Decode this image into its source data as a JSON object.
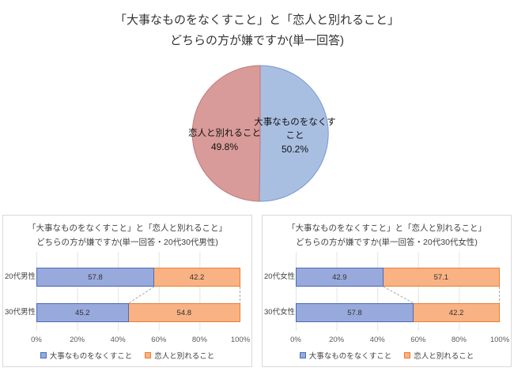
{
  "header": {
    "title_line1": "「大事なものをなくすこと」と「恋人と別れること」",
    "title_line2": "どちらの方が嫌ですか(単一回答)"
  },
  "colors": {
    "pie": {
      "blue": {
        "fill": "#a9bfe2",
        "stroke": "#7599d2"
      },
      "pink": {
        "fill": "#d89b99",
        "stroke": "#c27a78"
      }
    },
    "bar_blue_fill": "#98a9dc",
    "bar_blue_stroke": "#4b69b8",
    "bar_orange_fill": "#f8b284",
    "bar_orange_stroke": "#ea7f32",
    "gridline": "#e4e4e4",
    "connector": "#a6a6a6",
    "panel_border": "#d9d9d9"
  },
  "chart_data": [
    {
      "type": "pie",
      "title": "「大事なものをなくすこと」と「恋人と別れること」 どちらの方が嫌ですか(単一回答)",
      "direction": "clockwise",
      "start_angle_deg": 0,
      "slices": [
        {
          "label": "大事なものをなくすこと",
          "value": 50.2,
          "value_label": "50.2%",
          "color_key": "blue"
        },
        {
          "label": "恋人と別れること",
          "value": 49.8,
          "value_label": "49.8%",
          "color_key": "pink"
        }
      ]
    },
    {
      "type": "bar",
      "orientation": "horizontal-stacked",
      "title_line1": "「大事なものをなくすこと」と「恋人と別れること」",
      "title_line2": "どちらの方が嫌ですか(単一回答・20代30代男性)",
      "categories": [
        "20代男性",
        "30代男性"
      ],
      "series": [
        {
          "name": "大事なものをなくすこと",
          "values": [
            57.8,
            45.2
          ]
        },
        {
          "name": "恋人と別れること",
          "values": [
            42.2,
            54.8
          ]
        }
      ],
      "xlim": [
        0,
        100
      ],
      "ticks": [
        "0%",
        "20%",
        "40%",
        "60%",
        "80%",
        "100%"
      ],
      "legend": [
        "大事なものをなくすこと",
        "恋人と別れること"
      ],
      "grid": "vertical"
    },
    {
      "type": "bar",
      "orientation": "horizontal-stacked",
      "title_line1": "「大事なものをなくすこと」と「恋人と別れること」",
      "title_line2": "どちらの方が嫌ですか(単一回答・20代30代女性)",
      "categories": [
        "20代女性",
        "30代女性"
      ],
      "series": [
        {
          "name": "大事なものをなくすこと",
          "values": [
            42.9,
            57.8
          ]
        },
        {
          "name": "恋人と別れること",
          "values": [
            57.1,
            42.2
          ]
        }
      ],
      "xlim": [
        0,
        100
      ],
      "ticks": [
        "0%",
        "20%",
        "40%",
        "60%",
        "80%",
        "100%"
      ],
      "legend": [
        "大事なものをなくすこと",
        "恋人と別れること"
      ],
      "grid": "vertical"
    }
  ]
}
